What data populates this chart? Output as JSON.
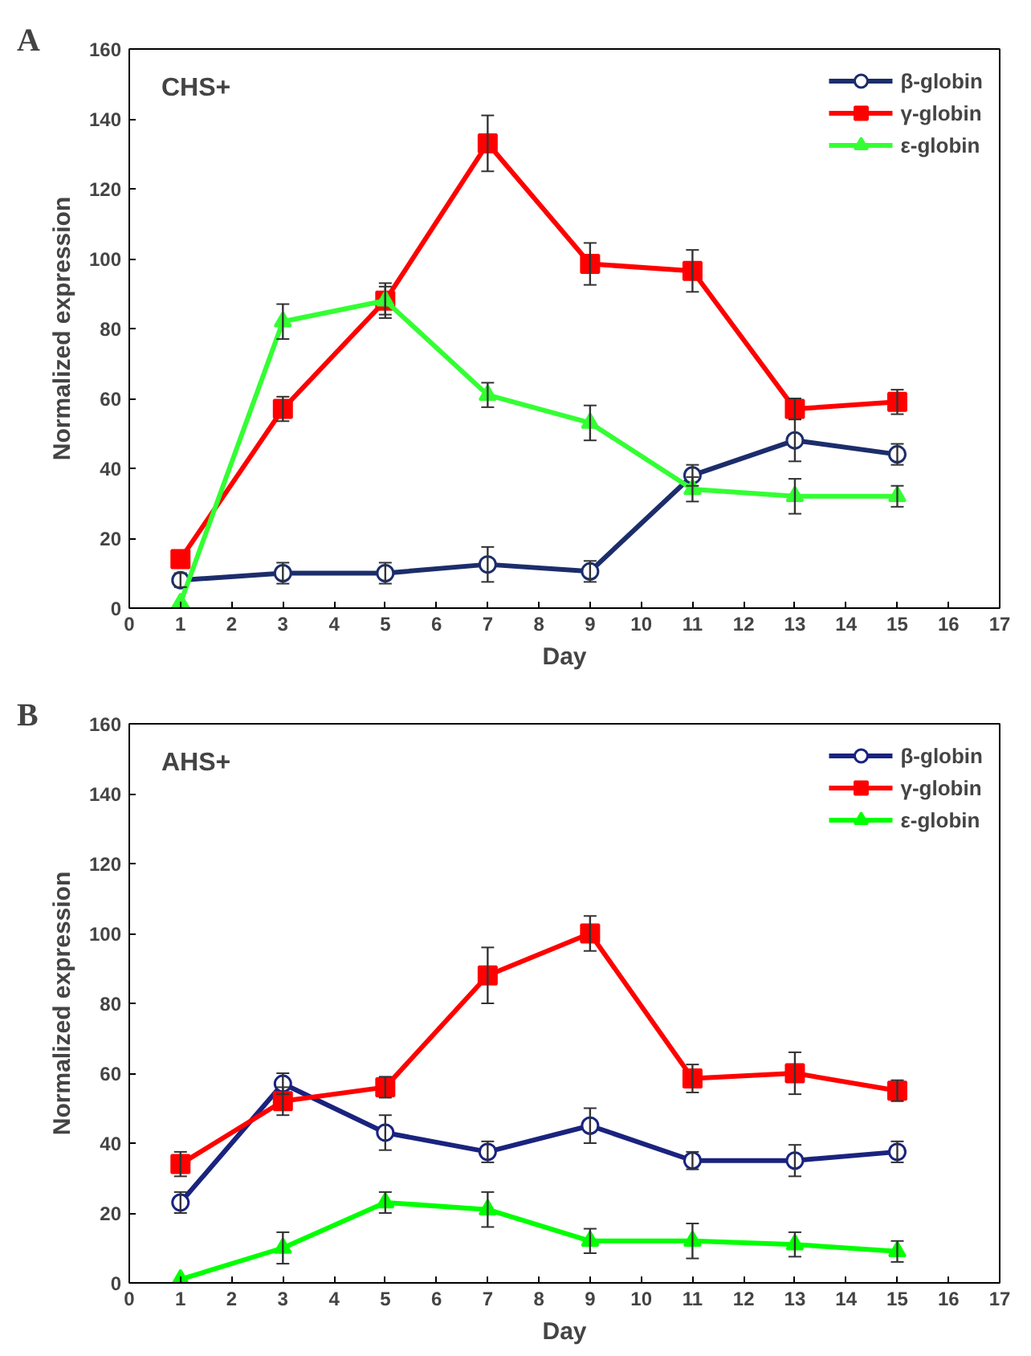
{
  "chart_data": [
    {
      "type": "line",
      "annotations": [
        "A",
        "CHS+"
      ],
      "xlabel": "Day",
      "ylabel": "Normalized expression",
      "x": [
        1,
        3,
        5,
        7,
        9,
        11,
        13,
        15
      ],
      "xlim": [
        0,
        17
      ],
      "xticks": [
        0,
        1,
        2,
        3,
        4,
        5,
        6,
        7,
        8,
        9,
        10,
        11,
        12,
        13,
        14,
        15,
        16,
        17
      ],
      "ylim": [
        0,
        160
      ],
      "yticks": [
        0,
        20,
        40,
        60,
        80,
        100,
        120,
        140,
        160
      ],
      "grid": false,
      "legend": "top right",
      "series": [
        {
          "name": "β-globin",
          "color": "#1c2d6b",
          "marker": "circle",
          "values": [
            8,
            10,
            10,
            12.5,
            10.5,
            38,
            48,
            44
          ],
          "errors": [
            2,
            3,
            3,
            5,
            3,
            3,
            6,
            3
          ]
        },
        {
          "name": "γ-globin",
          "color": "#ff0000",
          "marker": "square",
          "values": [
            14,
            57,
            88,
            133,
            98.5,
            96.5,
            57,
            59
          ],
          "errors": [
            null,
            3.5,
            5,
            8,
            6,
            6,
            3,
            3.5
          ]
        },
        {
          "name": "ε-globin",
          "color": "#33ff33",
          "marker": "triangle",
          "values": [
            1.5,
            82,
            88,
            61,
            53,
            34,
            32,
            32
          ],
          "errors": [
            null,
            5,
            4,
            3.5,
            5,
            3.5,
            5,
            3
          ]
        }
      ]
    },
    {
      "type": "line",
      "annotations": [
        "B",
        "AHS+"
      ],
      "xlabel": "Day",
      "ylabel": "Normalized expression",
      "x": [
        1,
        3,
        5,
        7,
        9,
        11,
        13,
        15
      ],
      "xlim": [
        0,
        17
      ],
      "xticks": [
        0,
        1,
        2,
        3,
        4,
        5,
        6,
        7,
        8,
        9,
        10,
        11,
        12,
        13,
        14,
        15,
        16,
        17
      ],
      "ylim": [
        0,
        160
      ],
      "yticks": [
        0,
        20,
        40,
        60,
        80,
        100,
        120,
        140,
        160
      ],
      "grid": false,
      "legend": "top right",
      "series": [
        {
          "name": "β-globin",
          "color": "#1a237e",
          "marker": "circle",
          "values": [
            23,
            57,
            43,
            37.5,
            45,
            35,
            35,
            37.5
          ],
          "errors": [
            3,
            3,
            5,
            3,
            5,
            2.5,
            4.5,
            3
          ]
        },
        {
          "name": "γ-globin",
          "color": "#ff0000",
          "marker": "square",
          "values": [
            34,
            52,
            56,
            88,
            100,
            58.5,
            60,
            55
          ],
          "errors": [
            3.5,
            4,
            3,
            8,
            5,
            4,
            6,
            3
          ]
        },
        {
          "name": "ε-globin",
          "color": "#00ff00",
          "marker": "triangle",
          "values": [
            1,
            10,
            23,
            21,
            12,
            12,
            11,
            9
          ],
          "errors": [
            null,
            4.5,
            3,
            5,
            3.5,
            5,
            3.5,
            3
          ]
        }
      ]
    }
  ]
}
